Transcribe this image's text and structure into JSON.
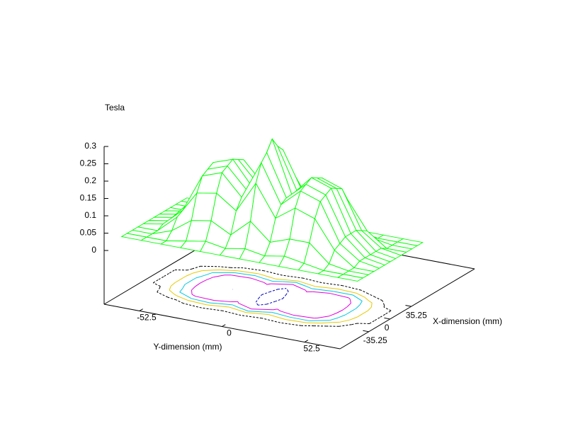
{
  "chart_data": {
    "type": "surface",
    "zlabel": "Tesla",
    "xlabel": "X-dimension (mm)",
    "ylabel": "Y-dimension (mm)",
    "x": [
      -54,
      -45,
      -36,
      -27,
      -18,
      -9,
      0,
      9,
      18,
      27,
      36,
      45,
      54
    ],
    "y": [
      -75,
      -62.5,
      -50,
      -37.5,
      -25,
      -12.5,
      0,
      12.5,
      25,
      37.5,
      50,
      62.5,
      75
    ],
    "z": [
      [
        0.01,
        0.01,
        0.01,
        0.01,
        0.01,
        0.01,
        0.01,
        0.01,
        0.01,
        0.01,
        0.01,
        0.01,
        0.01
      ],
      [
        0.01,
        0.01,
        0.01,
        0.02,
        0.03,
        0.02,
        0.03,
        0.02,
        0.03,
        0.02,
        0.01,
        0.01,
        0.01
      ],
      [
        0.01,
        0.01,
        0.03,
        0.07,
        0.08,
        0.05,
        0.1,
        0.05,
        0.07,
        0.07,
        0.02,
        0.01,
        0.01
      ],
      [
        0.01,
        0.01,
        0.06,
        0.14,
        0.15,
        0.11,
        0.2,
        0.11,
        0.15,
        0.13,
        0.05,
        0.01,
        0.01
      ],
      [
        0.01,
        0.02,
        0.07,
        0.18,
        0.2,
        0.14,
        0.25,
        0.14,
        0.19,
        0.17,
        0.06,
        0.02,
        0.01
      ],
      [
        0.01,
        0.02,
        0.08,
        0.19,
        0.21,
        0.15,
        0.27,
        0.15,
        0.2,
        0.18,
        0.07,
        0.02,
        0.01
      ],
      [
        0.01,
        0.02,
        0.08,
        0.2,
        0.22,
        0.15,
        0.3,
        0.15,
        0.21,
        0.19,
        0.07,
        0.02,
        0.01
      ],
      [
        0.01,
        0.02,
        0.08,
        0.19,
        0.21,
        0.15,
        0.27,
        0.15,
        0.2,
        0.18,
        0.07,
        0.02,
        0.01
      ],
      [
        0.01,
        0.02,
        0.07,
        0.18,
        0.2,
        0.14,
        0.25,
        0.14,
        0.19,
        0.17,
        0.06,
        0.02,
        0.01
      ],
      [
        0.01,
        0.01,
        0.06,
        0.14,
        0.15,
        0.11,
        0.2,
        0.11,
        0.15,
        0.13,
        0.05,
        0.01,
        0.01
      ],
      [
        0.01,
        0.01,
        0.03,
        0.07,
        0.08,
        0.05,
        0.1,
        0.05,
        0.07,
        0.07,
        0.02,
        0.01,
        0.01
      ],
      [
        0.01,
        0.01,
        0.01,
        0.02,
        0.03,
        0.02,
        0.03,
        0.02,
        0.03,
        0.02,
        0.01,
        0.01,
        0.01
      ],
      [
        0.01,
        0.01,
        0.01,
        0.01,
        0.01,
        0.01,
        0.01,
        0.01,
        0.01,
        0.01,
        0.01,
        0.01,
        0.01
      ]
    ],
    "xlim": [
      -83,
      140
    ],
    "ylim": [
      -75,
      75
    ],
    "zlim": [
      -0.155,
      0.3
    ],
    "xticks": [
      -35.25,
      0,
      35.25
    ],
    "yticks": [
      -52.5,
      0,
      52.5
    ],
    "zticks": [
      0,
      0.05,
      0.1,
      0.15,
      0.2,
      0.25,
      0.3
    ],
    "color": "#00ff00",
    "hidden3d": true,
    "contour_levels": [
      0.015,
      0.04,
      0.07,
      0.12,
      0.22
    ],
    "contour_colors": [
      "#000000",
      "#e8c800",
      "#00c8e0",
      "#e000e0",
      "#0000c0"
    ]
  }
}
